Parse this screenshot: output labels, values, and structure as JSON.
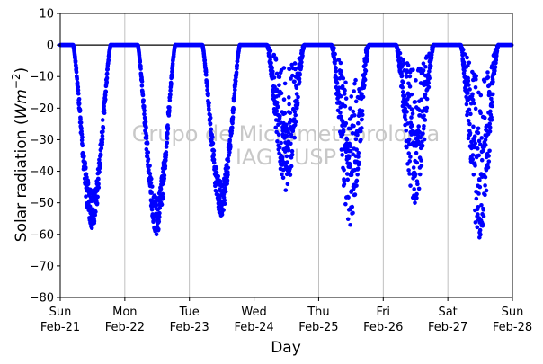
{
  "chart_data": {
    "type": "scatter",
    "xlabel": "Day",
    "ylabel_main": "Solar radiation (",
    "ylabel_unit": "Wm",
    "ylabel_exp": "−2",
    "ylabel_close": ")",
    "ylim": [
      -80,
      10
    ],
    "yticks": [
      10,
      0,
      -10,
      -20,
      -30,
      -40,
      -50,
      -60,
      -70,
      -80
    ],
    "xlim": [
      "Feb-21",
      "Feb-28"
    ],
    "xticks": [
      {
        "day": "Sun",
        "date": "Feb-21"
      },
      {
        "day": "Mon",
        "date": "Feb-22"
      },
      {
        "day": "Tue",
        "date": "Feb-23"
      },
      {
        "day": "Wed",
        "date": "Feb-24"
      },
      {
        "day": "Thu",
        "date": "Feb-25"
      },
      {
        "day": "Fri",
        "date": "Feb-26"
      },
      {
        "day": "Sat",
        "date": "Feb-27"
      },
      {
        "day": "Sun",
        "date": "Feb-28"
      }
    ],
    "grid": "vertical",
    "zero_line": 0,
    "marker_color": "#0000ff",
    "watermark": [
      "Grupo de Micrometeorologia",
      "IAG / USP"
    ],
    "daily_peaks": [
      {
        "date": "Feb-21",
        "min": -58
      },
      {
        "date": "Feb-22",
        "min": -60
      },
      {
        "date": "Feb-23",
        "min": -54
      },
      {
        "date": "Feb-24",
        "min": -46
      },
      {
        "date": "Feb-25",
        "min": -57
      },
      {
        "date": "Feb-26",
        "min": -50
      },
      {
        "date": "Feb-27",
        "min": -61
      }
    ]
  }
}
